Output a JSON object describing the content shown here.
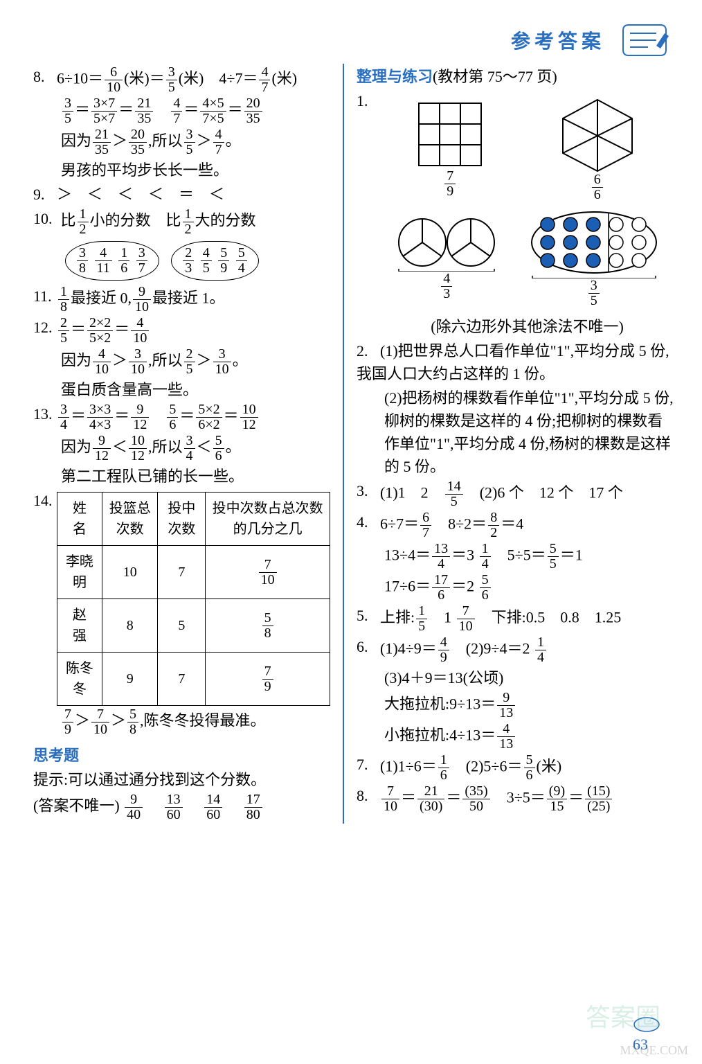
{
  "header": {
    "title": "参考答案"
  },
  "left": {
    "q8": {
      "num": "8.",
      "l1a": "6÷10＝",
      "l1f1": {
        "t": "6",
        "b": "10"
      },
      "l1b": "(米)＝",
      "l1f2": {
        "t": "3",
        "b": "5"
      },
      "l1c": "(米)　4÷7＝",
      "l1f3": {
        "t": "4",
        "b": "7"
      },
      "l1d": "(米)",
      "l2f1": {
        "t": "3",
        "b": "5"
      },
      "l2a": "＝",
      "l2f2": {
        "t": "3×7",
        "b": "5×7"
      },
      "l2b": "＝",
      "l2f3": {
        "t": "21",
        "b": "35"
      },
      "l2sp": "　",
      "l2f4": {
        "t": "4",
        "b": "7"
      },
      "l2c": "＝",
      "l2f5": {
        "t": "4×5",
        "b": "7×5"
      },
      "l2d": "＝",
      "l2f6": {
        "t": "20",
        "b": "35"
      },
      "l3a": "因为",
      "l3f1": {
        "t": "21",
        "b": "35"
      },
      "l3b": "＞",
      "l3f2": {
        "t": "20",
        "b": "35"
      },
      "l3c": ",所以",
      "l3f3": {
        "t": "3",
        "b": "5"
      },
      "l3d": "＞",
      "l3f4": {
        "t": "4",
        "b": "7"
      },
      "l3e": "。",
      "l4": "男孩的平均步长长一些。"
    },
    "q9": {
      "num": "9.",
      "text": "＞　＜　＜　＜　＝　＜"
    },
    "q10": {
      "num": "10.",
      "h1a": "比",
      "h1f": {
        "t": "1",
        "b": "2"
      },
      "h1b": "小的分数　比",
      "h1f2": {
        "t": "1",
        "b": "2"
      },
      "h1c": "大的分数",
      "g1": [
        {
          "t": "3",
          "b": "8"
        },
        {
          "t": "4",
          "b": "11"
        },
        {
          "t": "1",
          "b": "6"
        },
        {
          "t": "3",
          "b": "7"
        }
      ],
      "g2": [
        {
          "t": "2",
          "b": "3"
        },
        {
          "t": "4",
          "b": "5"
        },
        {
          "t": "5",
          "b": "9"
        },
        {
          "t": "5",
          "b": "4"
        }
      ]
    },
    "q11": {
      "num": "11.",
      "f1": {
        "t": "1",
        "b": "8"
      },
      "a": "最接近 0,",
      "f2": {
        "t": "9",
        "b": "10"
      },
      "b": "最接近 1。"
    },
    "q12": {
      "num": "12.",
      "l1f1": {
        "t": "2",
        "b": "5"
      },
      "l1a": "＝",
      "l1f2": {
        "t": "2×2",
        "b": "5×2"
      },
      "l1b": "＝",
      "l1f3": {
        "t": "4",
        "b": "10"
      },
      "l2a": "因为",
      "l2f1": {
        "t": "4",
        "b": "10"
      },
      "l2b": "＞",
      "l2f2": {
        "t": "3",
        "b": "10"
      },
      "l2c": ",所以",
      "l2f3": {
        "t": "2",
        "b": "5"
      },
      "l2d": "＞",
      "l2f4": {
        "t": "3",
        "b": "10"
      },
      "l2e": "。",
      "l3": "蛋白质含量高一些。"
    },
    "q13": {
      "num": "13.",
      "l1f1": {
        "t": "3",
        "b": "4"
      },
      "l1a": "＝",
      "l1f2": {
        "t": "3×3",
        "b": "4×3"
      },
      "l1b": "＝",
      "l1f3": {
        "t": "9",
        "b": "12"
      },
      "l1sp": "　",
      "l1f4": {
        "t": "5",
        "b": "6"
      },
      "l1c": "＝",
      "l1f5": {
        "t": "5×2",
        "b": "6×2"
      },
      "l1d": "＝",
      "l1f6": {
        "t": "10",
        "b": "12"
      },
      "l2a": "因为",
      "l2f1": {
        "t": "9",
        "b": "12"
      },
      "l2b": "＜",
      "l2f2": {
        "t": "10",
        "b": "12"
      },
      "l2c": ",所以",
      "l2f3": {
        "t": "3",
        "b": "4"
      },
      "l2d": "＜",
      "l2f4": {
        "t": "5",
        "b": "6"
      },
      "l2e": "。",
      "l3": "第二工程队已铺的长一些。"
    },
    "q14": {
      "num": "14.",
      "headers": [
        "姓　名",
        "投篮总次数",
        "投中次数",
        "投中次数占总次数的几分之几"
      ],
      "rows": [
        {
          "name": "李晓明",
          "a": "10",
          "b": "7",
          "f": {
            "t": "7",
            "b": "10"
          }
        },
        {
          "name": "赵　强",
          "a": "8",
          "b": "5",
          "f": {
            "t": "5",
            "b": "8"
          }
        },
        {
          "name": "陈冬冬",
          "a": "9",
          "b": "7",
          "f": {
            "t": "7",
            "b": "9"
          }
        }
      ],
      "cmpf1": {
        "t": "7",
        "b": "9"
      },
      "cmpa": "＞",
      "cmpf2": {
        "t": "7",
        "b": "10"
      },
      "cmpb": "＞",
      "cmpf3": {
        "t": "5",
        "b": "8"
      },
      "cmpc": ",陈冬冬投得最准。"
    },
    "thinking": {
      "title": "思考题",
      "hint": "提示:可以通过通分找到这个分数。",
      "ans_a": "(答案不唯一)",
      "fracs": [
        {
          "t": "9",
          "b": "40"
        },
        {
          "t": "13",
          "b": "60"
        },
        {
          "t": "14",
          "b": "60"
        },
        {
          "t": "17",
          "b": "80"
        }
      ]
    }
  },
  "right": {
    "section": {
      "title": "整理与练习",
      "note": "(教材第 75～77 页)"
    },
    "q1": {
      "num": "1.",
      "grid": {
        "rows": 3,
        "cols": 3,
        "shaded": [
          [
            0,
            0
          ],
          [
            0,
            1
          ],
          [
            0,
            2
          ],
          [
            1,
            0
          ],
          [
            1,
            1
          ],
          [
            1,
            2
          ],
          [
            2,
            0
          ]
        ],
        "label": {
          "t": "7",
          "b": "9"
        }
      },
      "hex": {
        "label": {
          "t": "6",
          "b": "6"
        }
      },
      "twocircles": {
        "label": {
          "t": "4",
          "b": "3"
        }
      },
      "dots": {
        "rows": 3,
        "cols": 5,
        "filled": [
          [
            0,
            0
          ],
          [
            0,
            1
          ],
          [
            0,
            2
          ],
          [
            1,
            0
          ],
          [
            1,
            1
          ],
          [
            1,
            2
          ],
          [
            2,
            0
          ],
          [
            2,
            1
          ],
          [
            2,
            2
          ]
        ],
        "fill": "#1a5fb4",
        "label": {
          "t": "3",
          "b": "5"
        }
      },
      "note": "(除六边形外其他涂法不唯一)"
    },
    "q2": {
      "num": "2.",
      "p1": "(1)把世界总人口看作单位\"1\",平均分成 5 份,我国人口大约占这样的 1 份。",
      "p2": "(2)把杨树的棵数看作单位\"1\",平均分成 5 份,柳树的棵数是这样的 4 份;把柳树的棵数看作单位\"1\",平均分成 4 份,杨树的棵数是这样的 5 份。"
    },
    "q3": {
      "num": "3.",
      "a": "(1)1　2　",
      "f": {
        "t": "14",
        "b": "5"
      },
      "b": "　(2)6 个　12 个　17 个"
    },
    "q4": {
      "num": "4.",
      "l1a": "6÷7＝",
      "l1f": {
        "t": "6",
        "b": "7"
      },
      "l1b": "　8÷2＝",
      "l1f2": {
        "t": "8",
        "b": "2"
      },
      "l1c": "＝4",
      "l2a": "13÷4＝",
      "l2f": {
        "t": "13",
        "b": "4"
      },
      "l2b": "＝3 ",
      "l2f2": {
        "t": "1",
        "b": "4"
      },
      "l2c": "　5÷5＝",
      "l2f3": {
        "t": "5",
        "b": "5"
      },
      "l2d": "＝1",
      "l3a": "17÷6＝",
      "l3f": {
        "t": "17",
        "b": "6"
      },
      "l3b": "＝2 ",
      "l3f2": {
        "t": "5",
        "b": "6"
      }
    },
    "q5": {
      "num": "5.",
      "a": "上排:",
      "f1": {
        "t": "1",
        "b": "5"
      },
      "b": "　1 ",
      "f2": {
        "t": "7",
        "b": "10"
      },
      "c": "　下排:0.5　0.8　1.25"
    },
    "q6": {
      "num": "6.",
      "l1a": "(1)4÷9＝",
      "l1f": {
        "t": "4",
        "b": "9"
      },
      "l1b": "　(2)9÷4＝2 ",
      "l1f2": {
        "t": "1",
        "b": "4"
      },
      "l2": "(3)4＋9＝13(公顷)",
      "l3a": "大拖拉机:9÷13＝",
      "l3f": {
        "t": "9",
        "b": "13"
      },
      "l4a": "小拖拉机:4÷13＝",
      "l4f": {
        "t": "4",
        "b": "13"
      }
    },
    "q7": {
      "num": "7.",
      "a": "(1)1÷6＝",
      "f1": {
        "t": "1",
        "b": "6"
      },
      "b": "　(2)5÷6＝",
      "f2": {
        "t": "5",
        "b": "6"
      },
      "c": "(米)"
    },
    "q8": {
      "num": "8.",
      "f1": {
        "t": "7",
        "b": "10"
      },
      "a": "＝",
      "f2": {
        "t": "21",
        "b": "(30)"
      },
      "b": "＝",
      "f3": {
        "t": "(35)",
        "b": "50"
      },
      "c": "　3÷5＝",
      "f4": {
        "t": "(9)",
        "b": "15"
      },
      "d": "＝",
      "f5": {
        "t": "(15)",
        "b": "(25)"
      }
    }
  },
  "footer": {
    "page": "63"
  }
}
